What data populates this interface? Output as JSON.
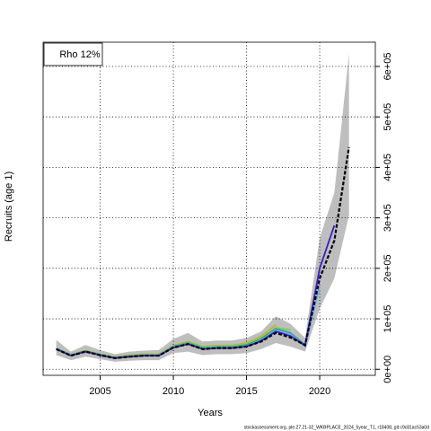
{
  "chart_data": {
    "type": "line",
    "annotation": "Rho 12%",
    "xlabel": "Years",
    "ylabel": "Recruits (age 1)",
    "footer": "stockassessment.org, ple.27.21-32_WKBPLACE_2024_5year_T1, r18408, git:c9c81ac53a0d",
    "x": [
      2002,
      2003,
      2004,
      2005,
      2006,
      2007,
      2008,
      2009,
      2010,
      2011,
      2012,
      2013,
      2014,
      2015,
      2016,
      2017,
      2018,
      2019,
      2020,
      2021,
      2022
    ],
    "band": {
      "color": "#bebebe",
      "lower": [
        28000,
        18000,
        25000,
        20000,
        15000,
        17000,
        18000,
        18000,
        32000,
        35000,
        28000,
        30000,
        30000,
        32000,
        40000,
        52000,
        45000,
        35000,
        120000,
        180000,
        305000
      ],
      "upper": [
        58000,
        35000,
        48000,
        38000,
        30000,
        35000,
        37000,
        38000,
        60000,
        72000,
        55000,
        57000,
        57000,
        62000,
        75000,
        105000,
        90000,
        62000,
        260000,
        350000,
        625000
      ]
    },
    "series": [
      {
        "color": "#bdb52b",
        "values": [
          42000,
          29000,
          37000,
          30000,
          24000,
          28000,
          30000,
          30000,
          47000,
          55000,
          45000,
          47000,
          47000,
          52000,
          65000,
          88000,
          null,
          null,
          null,
          null,
          null
        ]
      },
      {
        "color": "#7ad151",
        "values": [
          42000,
          29000,
          36000,
          30000,
          23000,
          27000,
          29000,
          29000,
          46000,
          54000,
          44000,
          46000,
          46000,
          50000,
          62000,
          82000,
          78000,
          null,
          null,
          null,
          null
        ]
      },
      {
        "color": "#1fa187",
        "values": [
          41000,
          28000,
          36000,
          29000,
          23000,
          26000,
          28000,
          28000,
          45000,
          52000,
          42000,
          44000,
          44000,
          48000,
          60000,
          80000,
          72000,
          48000,
          null,
          null,
          null
        ]
      },
      {
        "color": "#6baed6",
        "values": [
          41000,
          28000,
          35000,
          29000,
          22000,
          26000,
          28000,
          28000,
          44000,
          51000,
          41000,
          43000,
          43000,
          46000,
          58000,
          78000,
          70000,
          45000,
          165000,
          null,
          null
        ]
      },
      {
        "color": "#3b1bd1",
        "values": [
          40000,
          27000,
          35000,
          28000,
          22000,
          25000,
          27000,
          27000,
          43000,
          50000,
          40000,
          42000,
          42000,
          45000,
          56000,
          75000,
          66000,
          47000,
          200000,
          285000,
          null
        ]
      },
      {
        "color": "#000000",
        "dashed": true,
        "values": [
          40000,
          27000,
          35000,
          28000,
          22000,
          25000,
          27000,
          27000,
          43000,
          50000,
          40000,
          42000,
          42000,
          45000,
          55000,
          72000,
          63000,
          48000,
          180000,
          255000,
          440000
        ]
      }
    ],
    "xlim": [
      2001.1,
      2023.8
    ],
    "ylim": [
      -12000,
      648000
    ],
    "xticks": [
      2005,
      2010,
      2015,
      2020
    ],
    "yticks": [
      {
        "value": 0,
        "label": "0e+00"
      },
      {
        "value": 100000,
        "label": "1e+05"
      },
      {
        "value": 200000,
        "label": "2e+05"
      },
      {
        "value": 300000,
        "label": "3e+05"
      },
      {
        "value": 400000,
        "label": "4e+05"
      },
      {
        "value": 500000,
        "label": "5e+05"
      },
      {
        "value": 600000,
        "label": "6e+05"
      }
    ],
    "grid": true
  }
}
